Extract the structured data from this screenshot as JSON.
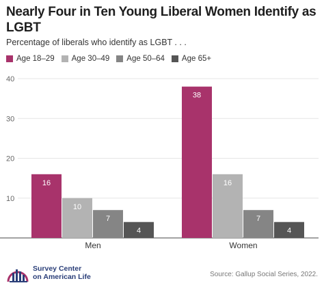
{
  "header": {
    "title": "Nearly Four in Ten Young Liberal Women Identify as LGBT",
    "subtitle": "Percentage of liberals who identify as LGBT . . ."
  },
  "colors": {
    "series": [
      "#a8336b",
      "#b3b3b3",
      "#858585",
      "#555555"
    ],
    "axis": "#666666",
    "grid": "#e5e5e5"
  },
  "chart_data": {
    "type": "bar",
    "categories": [
      "Men",
      "Women"
    ],
    "series": [
      {
        "name": "Age 18–29",
        "values": [
          16,
          38
        ]
      },
      {
        "name": "Age 30–49",
        "values": [
          10,
          16
        ]
      },
      {
        "name": "Age 50–64",
        "values": [
          7,
          7
        ]
      },
      {
        "name": "Age 65+",
        "values": [
          4,
          4
        ]
      }
    ],
    "yticks": [
      "10",
      "20",
      "30",
      "40"
    ],
    "ylim": [
      0,
      40
    ],
    "legend_position": "top-left",
    "data_labels": true
  },
  "footer": {
    "logo_line1": "Survey Center",
    "logo_line2": "on American Life",
    "source": "Source: Gallup Social Series, 2022."
  }
}
